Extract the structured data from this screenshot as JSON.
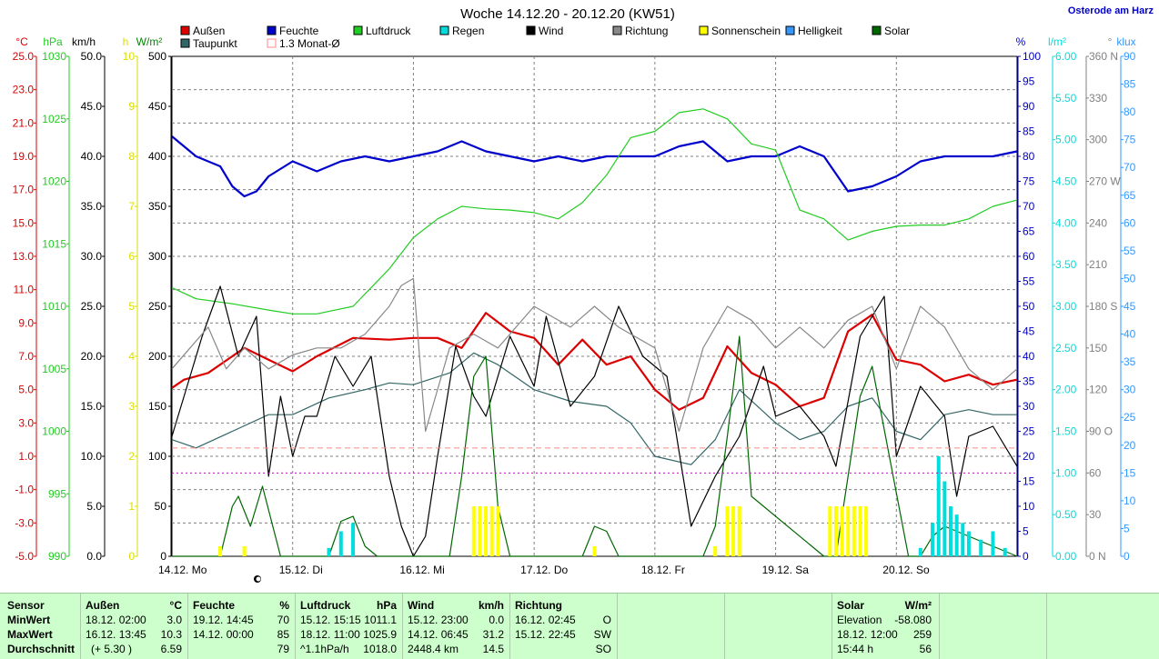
{
  "header": {
    "title": "Woche 14.12.20 - 20.12.20 (KW51)",
    "location": "Osterode am Harz"
  },
  "colors": {
    "temp": "#dd0000",
    "humidity": "#0000cc",
    "pressure": "#22cc22",
    "rain": "#00dddd",
    "wind": "#000000",
    "direction": "#888888",
    "sunshine": "#ffff00",
    "brightness": "#3399ff",
    "solar": "#006600",
    "dewpoint": "#336666",
    "monthavg": "#ff8888",
    "grid": "#808080"
  },
  "chart_data": {
    "type": "line",
    "title": "Woche 14.12.20 - 20.12.20 (KW51)",
    "legend": [
      {
        "name": "Außen",
        "color": "#dd0000"
      },
      {
        "name": "Feuchte",
        "color": "#0000cc"
      },
      {
        "name": "Luftdruck",
        "color": "#22cc22"
      },
      {
        "name": "Regen",
        "color": "#00dddd"
      },
      {
        "name": "Wind",
        "color": "#000000"
      },
      {
        "name": "Richtung",
        "color": "#888888"
      },
      {
        "name": "Sonnenschein",
        "color": "#ffff00"
      },
      {
        "name": "Helligkeit",
        "color": "#3399ff"
      },
      {
        "name": "Solar",
        "color": "#006600"
      },
      {
        "name": "Taupunkt",
        "color": "#336666"
      },
      {
        "name": "1.3 Monat-Ø",
        "color": "#ff8888"
      }
    ],
    "x_ticks": [
      "14.12. Mo",
      "15.12. Di",
      "16.12. Mi",
      "17.12. Do",
      "18.12. Fr",
      "19.12. Sa",
      "20.12. So"
    ],
    "axes": {
      "temp": {
        "unit": "°C",
        "min": -5,
        "max": 25,
        "ticks": [
          "25.0",
          "23.0",
          "21.0",
          "19.0",
          "17.0",
          "15.0",
          "13.0",
          "11.0",
          "9.0",
          "7.0",
          "5.0",
          "3.0",
          "1.0",
          "-1.0",
          "-3.0",
          "-5.0"
        ]
      },
      "pressure": {
        "unit": "hPa",
        "min": 990,
        "max": 1030,
        "ticks": [
          "1030",
          "1025",
          "1020",
          "1015",
          "1010",
          "1005",
          "1000",
          "995",
          "990"
        ]
      },
      "wind": {
        "unit": "km/h",
        "min": 0,
        "max": 50,
        "ticks": [
          "50.0",
          "45.0",
          "40.0",
          "35.0",
          "30.0",
          "25.0",
          "20.0",
          "15.0",
          "10.0",
          "5.0",
          "0.0"
        ]
      },
      "sunhours": {
        "unit": "h",
        "min": 0,
        "max": 10,
        "ticks": [
          "10",
          "9",
          "8",
          "7",
          "6",
          "5",
          "4",
          "3",
          "2",
          "1",
          "0"
        ]
      },
      "solar": {
        "unit": "W/m²",
        "min": 0,
        "max": 500,
        "ticks": [
          "500",
          "450",
          "400",
          "350",
          "300",
          "250",
          "200",
          "150",
          "100",
          "50",
          "0"
        ]
      },
      "humidity": {
        "unit": "%",
        "min": 0,
        "max": 100,
        "ticks": [
          "100",
          "95",
          "90",
          "85",
          "80",
          "75",
          "70",
          "65",
          "60",
          "55",
          "50",
          "45",
          "40",
          "35",
          "30",
          "25",
          "20",
          "15",
          "10",
          "5",
          "0"
        ]
      },
      "rain": {
        "unit": "l/m²",
        "min": 0,
        "max": 6,
        "ticks": [
          "6.00",
          "5.50",
          "5.00",
          "4.50",
          "4.00",
          "3.50",
          "3.00",
          "2.50",
          "2.00",
          "1.50",
          "1.00",
          "0.50",
          "0.00"
        ]
      },
      "direction": {
        "unit": "°",
        "min": 0,
        "max": 360,
        "ticks": [
          "360 N",
          "330",
          "300",
          "270 W",
          "240",
          "210",
          "180 S",
          "150",
          "120",
          "90 O",
          "60",
          "30",
          "0 N"
        ]
      },
      "brightness": {
        "unit": "klux",
        "min": 0,
        "max": 90,
        "ticks": [
          "90",
          "85",
          "80",
          "75",
          "70",
          "65",
          "60",
          "55",
          "50",
          "45",
          "40",
          "35",
          "30",
          "25",
          "20",
          "15",
          "10",
          "5",
          "0"
        ]
      }
    },
    "series": [
      {
        "name": "Außen",
        "axis": "temp",
        "color": "#dd0000",
        "x": [
          0,
          0.1,
          0.3,
          0.6,
          0.8,
          1.0,
          1.2,
          1.5,
          1.8,
          2.0,
          2.2,
          2.4,
          2.6,
          2.8,
          3.0,
          3.2,
          3.4,
          3.6,
          3.8,
          4.0,
          4.2,
          4.4,
          4.6,
          4.8,
          5.0,
          5.2,
          5.4,
          5.6,
          5.8,
          6.0,
          6.2,
          6.4,
          6.6,
          6.8,
          7.0
        ],
        "y": [
          5.1,
          5.6,
          6.0,
          7.5,
          6.8,
          6.1,
          7.0,
          8.1,
          8.0,
          8.1,
          8.1,
          7.5,
          9.6,
          8.5,
          8.1,
          6.5,
          8.0,
          6.5,
          7.0,
          5.0,
          3.8,
          4.5,
          7.6,
          6.0,
          5.3,
          4.0,
          4.5,
          8.5,
          9.5,
          6.8,
          6.5,
          5.5,
          5.9,
          5.3,
          5.6
        ]
      },
      {
        "name": "Feuchte",
        "axis": "humidity",
        "color": "#0000cc",
        "x": [
          0,
          0.2,
          0.4,
          0.5,
          0.6,
          0.7,
          0.8,
          1.0,
          1.2,
          1.4,
          1.6,
          1.8,
          2.0,
          2.2,
          2.4,
          2.6,
          2.8,
          3.0,
          3.2,
          3.4,
          3.6,
          3.8,
          4.0,
          4.2,
          4.4,
          4.6,
          4.8,
          5.0,
          5.2,
          5.4,
          5.6,
          5.8,
          6.0,
          6.2,
          6.4,
          6.6,
          6.8,
          7.0
        ],
        "y": [
          84,
          80,
          78,
          74,
          72,
          73,
          76,
          79,
          77,
          79,
          80,
          79,
          80,
          81,
          83,
          81,
          80,
          79,
          80,
          79,
          80,
          80,
          80,
          82,
          83,
          79,
          80,
          80,
          82,
          80,
          73,
          74,
          76,
          79,
          80,
          80,
          80,
          81
        ]
      },
      {
        "name": "Luftdruck",
        "axis": "pressure",
        "color": "#22cc22",
        "x": [
          0,
          0.2,
          0.5,
          0.8,
          1.0,
          1.2,
          1.5,
          1.8,
          2.0,
          2.2,
          2.4,
          2.6,
          2.8,
          3.0,
          3.2,
          3.4,
          3.6,
          3.8,
          4.0,
          4.2,
          4.4,
          4.6,
          4.8,
          5.0,
          5.2,
          5.4,
          5.6,
          5.8,
          6.0,
          6.2,
          6.4,
          6.6,
          6.8,
          7.0
        ],
        "y": [
          1011.5,
          1010.6,
          1010.2,
          1009.7,
          1009.4,
          1009.4,
          1010.0,
          1013.0,
          1015.5,
          1017.0,
          1018.0,
          1017.8,
          1017.7,
          1017.5,
          1017.0,
          1018.3,
          1020.5,
          1023.5,
          1024.0,
          1025.5,
          1025.8,
          1025.0,
          1023.0,
          1022.5,
          1017.7,
          1017.0,
          1015.3,
          1016.0,
          1016.4,
          1016.5,
          1016.5,
          1017.0,
          1018.0,
          1018.5
        ]
      },
      {
        "name": "Taupunkt",
        "axis": "temp",
        "color": "#336666",
        "x": [
          0,
          0.2,
          0.5,
          0.8,
          1.0,
          1.3,
          1.6,
          1.8,
          2.0,
          2.3,
          2.5,
          2.7,
          3.0,
          3.3,
          3.6,
          3.8,
          4.0,
          4.3,
          4.5,
          4.7,
          5.0,
          5.2,
          5.4,
          5.6,
          5.8,
          6.0,
          6.2,
          6.4,
          6.6,
          6.8,
          7.0
        ],
        "y": [
          2.0,
          1.5,
          2.5,
          3.5,
          3.5,
          4.5,
          5.0,
          5.4,
          5.3,
          6.0,
          7.2,
          6.5,
          5.0,
          4.3,
          4.0,
          3.0,
          1.0,
          0.5,
          2.0,
          5.0,
          3.0,
          2.0,
          2.5,
          4.0,
          4.5,
          2.5,
          2.0,
          3.5,
          3.8,
          3.5,
          3.5
        ]
      },
      {
        "name": "Wind",
        "axis": "wind",
        "color": "#000000",
        "x": [
          0,
          0.1,
          0.25,
          0.4,
          0.55,
          0.7,
          0.8,
          0.9,
          1.0,
          1.1,
          1.2,
          1.35,
          1.5,
          1.65,
          1.8,
          1.9,
          2.0,
          2.1,
          2.2,
          2.35,
          2.5,
          2.6,
          2.8,
          3.0,
          3.1,
          3.3,
          3.5,
          3.7,
          3.9,
          4.1,
          4.3,
          4.5,
          4.7,
          4.9,
          5.0,
          5.2,
          5.4,
          5.5,
          5.7,
          5.9,
          6.0,
          6.2,
          6.4,
          6.5,
          6.6,
          6.8,
          7.0
        ],
        "y": [
          12,
          16,
          22,
          27,
          20,
          24,
          8,
          16,
          10,
          14,
          14,
          20,
          17,
          20,
          8,
          3,
          0,
          2,
          10,
          21,
          16,
          14,
          22,
          17,
          24,
          15,
          18,
          25,
          20,
          18,
          3,
          8,
          12,
          19,
          14,
          15,
          12,
          9,
          22,
          26,
          10,
          17,
          14,
          6,
          12,
          13,
          9
        ]
      },
      {
        "name": "Richtung",
        "axis": "direction",
        "color": "#888888",
        "x": [
          0,
          0.15,
          0.3,
          0.45,
          0.6,
          0.8,
          1.0,
          1.2,
          1.4,
          1.6,
          1.8,
          1.9,
          2.0,
          2.1,
          2.3,
          2.5,
          2.7,
          3.0,
          3.3,
          3.5,
          3.7,
          4.0,
          4.2,
          4.4,
          4.6,
          4.8,
          5.0,
          5.2,
          5.4,
          5.6,
          5.8,
          6.0,
          6.2,
          6.4,
          6.6,
          6.8,
          7.0
        ],
        "y": [
          135,
          150,
          165,
          135,
          150,
          135,
          145,
          150,
          150,
          160,
          180,
          195,
          200,
          90,
          150,
          160,
          150,
          180,
          165,
          180,
          165,
          150,
          90,
          150,
          180,
          170,
          150,
          165,
          150,
          170,
          180,
          135,
          180,
          165,
          135,
          120,
          135
        ]
      },
      {
        "name": "Solar",
        "axis": "solar",
        "color": "#006600",
        "x": [
          0,
          0.4,
          0.5,
          0.55,
          0.65,
          0.75,
          0.9,
          1.1,
          1.3,
          1.4,
          1.5,
          1.6,
          1.7,
          2.3,
          2.4,
          2.5,
          2.6,
          2.7,
          2.8,
          3.4,
          3.5,
          3.6,
          3.7,
          4.4,
          4.5,
          4.6,
          4.7,
          4.8,
          5.4,
          5.5,
          5.6,
          5.7,
          5.8,
          6.1,
          6.2,
          6.3,
          6.4,
          7.0
        ],
        "y": [
          0,
          0,
          50,
          60,
          30,
          70,
          0,
          0,
          0,
          35,
          40,
          10,
          0,
          0,
          80,
          180,
          200,
          50,
          0,
          0,
          30,
          25,
          0,
          0,
          30,
          120,
          220,
          60,
          0,
          0,
          80,
          160,
          190,
          0,
          0,
          20,
          30,
          0
        ]
      },
      {
        "name": "Sonnenschein",
        "axis": "sunhours",
        "type": "bar",
        "color": "#ffff00",
        "x": [
          0.4,
          0.6,
          2.5,
          2.55,
          2.6,
          2.65,
          2.7,
          3.5,
          4.5,
          4.6,
          4.65,
          4.7,
          5.45,
          5.5,
          5.55,
          5.6,
          5.65,
          5.7,
          5.75
        ],
        "y": [
          0.2,
          0.2,
          1.0,
          1.0,
          1.0,
          1.0,
          1.0,
          0.2,
          0.2,
          1.0,
          1.0,
          1.0,
          1.0,
          1.0,
          1.0,
          1.0,
          1.0,
          1.0,
          1.0
        ]
      },
      {
        "name": "Regen",
        "axis": "rain",
        "type": "bar",
        "color": "#00dddd",
        "x": [
          1.3,
          1.4,
          1.5,
          6.2,
          6.3,
          6.35,
          6.4,
          6.45,
          6.5,
          6.55,
          6.6,
          6.7,
          6.8,
          6.9
        ],
        "y": [
          0.1,
          0.3,
          0.4,
          0.1,
          0.4,
          1.2,
          0.9,
          0.6,
          0.5,
          0.4,
          0.3,
          0.2,
          0.3,
          0.1
        ]
      },
      {
        "name": "1.3 Monat-Ø",
        "axis": "temp",
        "color": "#ff8888",
        "type": "hline",
        "y": [
          1.5
        ]
      }
    ]
  },
  "stats": {
    "headers": {
      "sensor": "Sensor",
      "aussen": "Außen",
      "aussen_unit": "°C",
      "feuchte": "Feuchte",
      "feuchte_unit": "%",
      "luftdruck": "Luftdruck",
      "luftdruck_unit": "hPa",
      "wind": "Wind",
      "wind_unit": "km/h",
      "richtung": "Richtung",
      "solar": "Solar",
      "solar_unit": "W/m²"
    },
    "rows": [
      {
        "label": "MinWert",
        "aussen_t": "18.12.  02:00",
        "aussen_v": "3.0",
        "feuchte_t": "19.12.  14:45",
        "feuchte_v": "70",
        "luft_t": "15.12.  15:15",
        "luft_v": "1011.1",
        "wind_t": "15.12.  23:00",
        "wind_v": "0.0",
        "richt_t": "16.12.  02:45",
        "richt_v": "O",
        "solar_t": "Elevation",
        "solar_v": "-58.080"
      },
      {
        "label": "MaxWert",
        "aussen_t": "16.12.  13:45",
        "aussen_v": "10.3",
        "feuchte_t": "14.12.  00:00",
        "feuchte_v": "85",
        "luft_t": "18.12.  11:00",
        "luft_v": "1025.9",
        "wind_t": "14.12.  06:45",
        "wind_v": "31.2",
        "richt_t": "15.12.  22:45",
        "richt_v": "SW",
        "solar_t": "18.12.  12:00",
        "solar_v": "259"
      },
      {
        "label": "Durchschnitt",
        "aussen_t": "(+ 5.30 )",
        "aussen_v": "6.59",
        "feuchte_t": "",
        "feuchte_v": "79",
        "luft_t": "^1.1hPa/h",
        "luft_v": "1018.0",
        "wind_t": "2448.4 km",
        "wind_v": "14.5",
        "richt_t": "",
        "richt_v": "SO",
        "solar_t": "15:44 h",
        "solar_v": "56"
      }
    ]
  }
}
